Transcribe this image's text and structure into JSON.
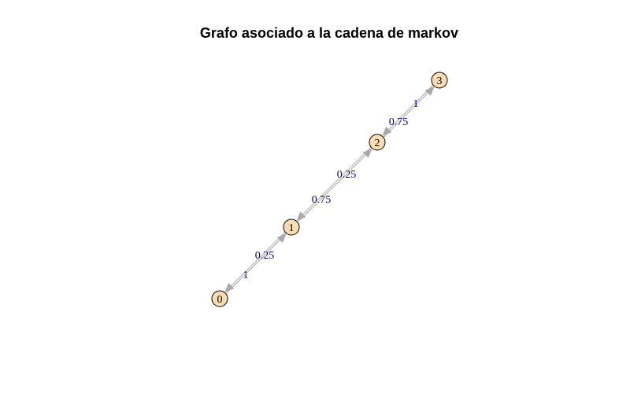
{
  "title": "Grafo asociado a la cadena de markov",
  "colors": {
    "node_fill": "#fbdcb0",
    "node_stroke": "#000000",
    "edge": "#a8a8a8",
    "edge_label": "#00007a",
    "title": "#000000"
  },
  "nodes": [
    {
      "id": "0",
      "label": "0"
    },
    {
      "id": "1",
      "label": "1"
    },
    {
      "id": "2",
      "label": "2"
    },
    {
      "id": "3",
      "label": "3"
    }
  ],
  "edges": [
    {
      "from": "1",
      "to": "0",
      "label": "1"
    },
    {
      "from": "0",
      "to": "1",
      "label": "0.25"
    },
    {
      "from": "2",
      "to": "1",
      "label": "0.75"
    },
    {
      "from": "1",
      "to": "2",
      "label": "0.25"
    },
    {
      "from": "3",
      "to": "2",
      "label": "0.75"
    },
    {
      "from": "2",
      "to": "3",
      "label": "1"
    }
  ]
}
